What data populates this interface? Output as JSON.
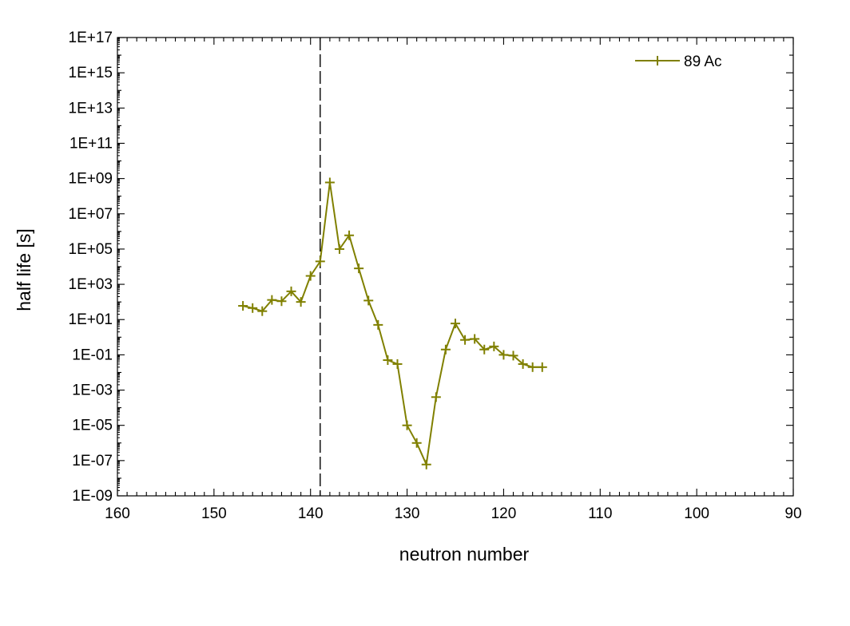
{
  "chart_data": {
    "type": "line",
    "xlabel": "neutron number",
    "ylabel": "half life [s]",
    "x_axis": {
      "range": [
        160,
        90
      ],
      "reversed": true,
      "ticks": [
        160,
        150,
        140,
        130,
        120,
        110,
        100,
        90
      ]
    },
    "y_axis": {
      "scale": "log",
      "range": [
        1e-09,
        1e+17
      ],
      "ticks": [
        "1E-09",
        "1E-07",
        "1E-05",
        "1E-03",
        "1E-01",
        "1E+01",
        "1E+03",
        "1E+05",
        "1E+07",
        "1E+09",
        "1E+11",
        "1E+13",
        "1E+15",
        "1E+17"
      ]
    },
    "reference_line": {
      "x": 139,
      "style": "dashed",
      "color": "#000000"
    },
    "grid": false,
    "legend": {
      "position": "top-right",
      "marker": "+"
    },
    "series": [
      {
        "name": "89 Ac",
        "color": "#808000",
        "marker": "+",
        "x": [
          147,
          146,
          145,
          144,
          143,
          142,
          141,
          140,
          139,
          138,
          137,
          136,
          135,
          134,
          133,
          132,
          131,
          130,
          129,
          128,
          127,
          126,
          125,
          124,
          123,
          122,
          121,
          120,
          119,
          118,
          117,
          116
        ],
        "y": [
          60,
          45,
          30,
          130,
          110,
          400,
          100,
          3000,
          20000,
          600000000.0,
          100000,
          600000,
          8000,
          120,
          5,
          0.05,
          0.03,
          1e-05,
          1e-06,
          6e-08,
          0.0004,
          0.2,
          6,
          0.7,
          0.8,
          0.2,
          0.3,
          0.1,
          0.09,
          0.03,
          0.02,
          0.02
        ]
      }
    ]
  }
}
